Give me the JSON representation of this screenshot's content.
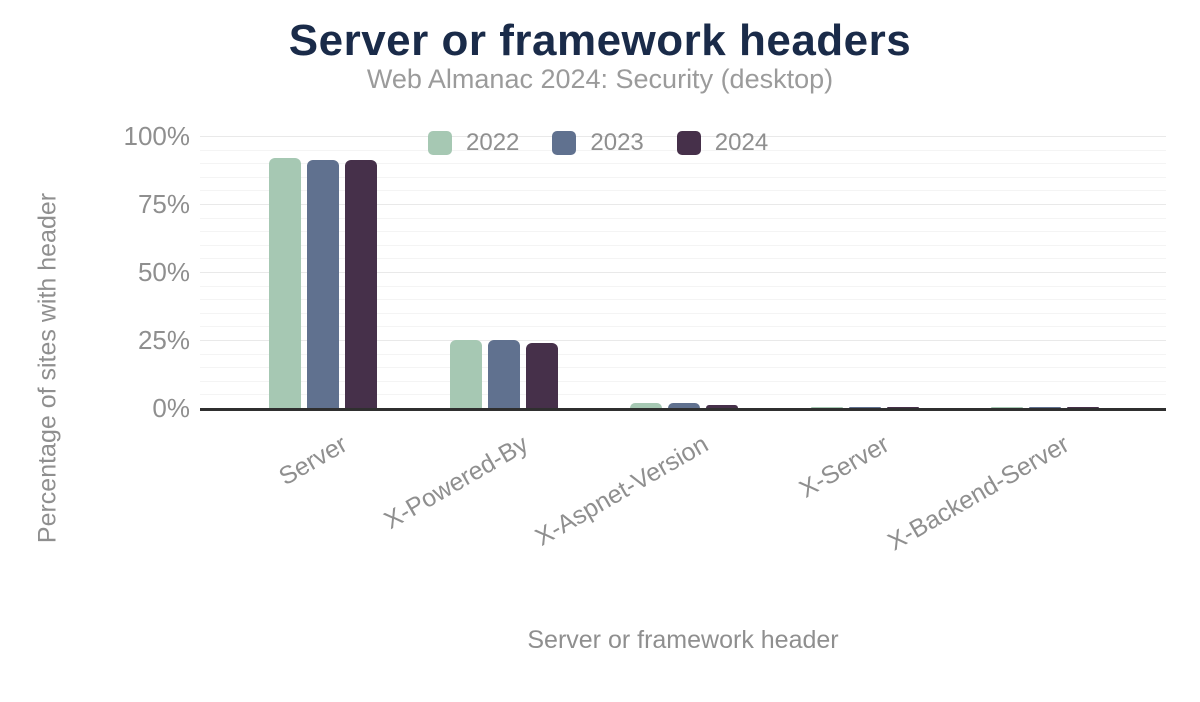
{
  "chart_data": {
    "type": "bar",
    "title": "Server or framework headers",
    "subtitle": "Web Almanac 2024: Security (desktop)",
    "xlabel": "Server or framework header",
    "ylabel": "Percentage of sites with header",
    "categories": [
      "Server",
      "X-Powered-By",
      "X-Aspnet-Version",
      "X-Server",
      "X-Backend-Server"
    ],
    "series": [
      {
        "name": "2022",
        "color": "#a6c8b3",
        "values": [
          92,
          25,
          2,
          0.5,
          0.5
        ]
      },
      {
        "name": "2023",
        "color": "#60718f",
        "values": [
          91,
          25,
          2,
          0.5,
          0.5
        ]
      },
      {
        "name": "2024",
        "color": "#46304a",
        "values": [
          91,
          24,
          1,
          0.4,
          0.4
        ]
      }
    ],
    "y_ticks": [
      {
        "label": "0%",
        "value": 0
      },
      {
        "label": "25%",
        "value": 25
      },
      {
        "label": "50%",
        "value": 50
      },
      {
        "label": "75%",
        "value": 75
      },
      {
        "label": "100%",
        "value": 100
      }
    ],
    "ylim": [
      0,
      100
    ],
    "grid": {
      "major_step": 25,
      "minor_step": 5,
      "orientation": "horizontal"
    },
    "legend_position": "top-center"
  },
  "colors": {
    "title": "#1a2b49",
    "subtitle": "#9b9b9b",
    "axis_text": "#8f8f8f",
    "axis_line": "#2f2f2f",
    "grid_major": "#e9e9e9",
    "grid_minor": "#f4f4f4",
    "background": "#ffffff"
  }
}
